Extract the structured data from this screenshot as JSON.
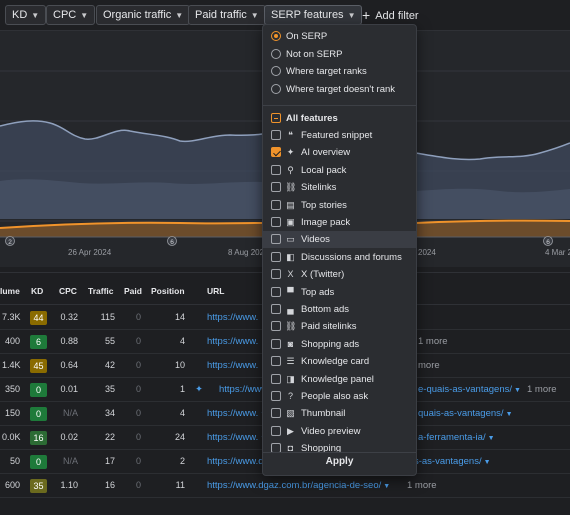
{
  "filters": [
    {
      "label": "KD"
    },
    {
      "label": "CPC"
    },
    {
      "label": "Organic traffic"
    },
    {
      "label": "Paid traffic"
    },
    {
      "label": "SERP features"
    }
  ],
  "add_filter": "Add filter",
  "chart": {
    "x_ticks": [
      "26 Apr 2024",
      "8 Aug 2024",
      "2024",
      "4 Mar 2"
    ],
    "markers": [
      "2",
      "6",
      "6"
    ],
    "colors": {
      "primary": "#8fa0bd",
      "orange": "#f0932b",
      "background": "#25272b"
    }
  },
  "serp_menu": {
    "position_options": [
      {
        "label": "On SERP",
        "selected": true
      },
      {
        "label": "Not on SERP",
        "selected": false
      },
      {
        "label": "Where target ranks",
        "selected": false
      },
      {
        "label": "Where target doesn't rank",
        "selected": false
      }
    ],
    "all_features_label": "All features",
    "features": [
      {
        "label": "Featured snippet",
        "icon": "featured-snippet-icon",
        "checked": false
      },
      {
        "label": "AI overview",
        "icon": "ai-overview-icon",
        "checked": true
      },
      {
        "label": "Local pack",
        "icon": "local-pack-icon",
        "checked": false
      },
      {
        "label": "Sitelinks",
        "icon": "sitelinks-icon",
        "checked": false
      },
      {
        "label": "Top stories",
        "icon": "top-stories-icon",
        "checked": false
      },
      {
        "label": "Image pack",
        "icon": "image-pack-icon",
        "checked": false
      },
      {
        "label": "Videos",
        "icon": "videos-icon",
        "checked": false
      },
      {
        "label": "Discussions and forums",
        "icon": "discussions-icon",
        "checked": false
      },
      {
        "label": "X (Twitter)",
        "icon": "x-twitter-icon",
        "checked": false
      },
      {
        "label": "Top ads",
        "icon": "top-ads-icon",
        "checked": false
      },
      {
        "label": "Bottom ads",
        "icon": "bottom-ads-icon",
        "checked": false
      },
      {
        "label": "Paid sitelinks",
        "icon": "paid-sitelinks-icon",
        "checked": false
      },
      {
        "label": "Shopping ads",
        "icon": "shopping-ads-icon",
        "checked": false
      },
      {
        "label": "Knowledge card",
        "icon": "knowledge-card-icon",
        "checked": false
      },
      {
        "label": "Knowledge panel",
        "icon": "knowledge-panel-icon",
        "checked": false
      },
      {
        "label": "People also ask",
        "icon": "people-also-ask-icon",
        "checked": false
      },
      {
        "label": "Thumbnail",
        "icon": "thumbnail-icon",
        "checked": false
      },
      {
        "label": "Video preview",
        "icon": "video-preview-icon",
        "checked": false
      },
      {
        "label": "Shopping",
        "icon": "shopping-icon",
        "checked": false
      }
    ],
    "apply_label": "Apply"
  },
  "table": {
    "headers": {
      "volume": "lume",
      "kd": "KD",
      "cpc": "CPC",
      "traffic": "Traffic",
      "paid": "Paid",
      "position": "Position",
      "url": "URL"
    },
    "rows": [
      {
        "volume": "7.3K",
        "kd": "44",
        "kd_color": "#8a6b00",
        "cpc": "0.32",
        "traffic": "115",
        "paid": "0",
        "position": "14",
        "url": "https://www.",
        "more": ""
      },
      {
        "volume": "400",
        "kd": "6",
        "kd_color": "#1e7a3a",
        "cpc": "0.88",
        "traffic": "55",
        "paid": "0",
        "position": "4",
        "url": "https://www.",
        "more": "1 more"
      },
      {
        "volume": "1.4K",
        "kd": "45",
        "kd_color": "#8a6b00",
        "cpc": "0.64",
        "traffic": "42",
        "paid": "0",
        "position": "10",
        "url": "https://www.",
        "more": "more"
      },
      {
        "volume": "350",
        "kd": "0",
        "kd_color": "#1e7a3a",
        "cpc": "0.01",
        "traffic": "35",
        "paid": "0",
        "position": "1",
        "url": "https://www.",
        "url_tail": "e-quais-as-vantagens/",
        "more": "1 more"
      },
      {
        "volume": "150",
        "kd": "0",
        "kd_color": "#1e7a3a",
        "cpc": "N/A",
        "traffic": "34",
        "paid": "0",
        "position": "4",
        "url": "https://www.",
        "url_tail": "quais-as-vantagens/",
        "more": ""
      },
      {
        "volume": "0.0K",
        "kd": "16",
        "kd_color": "#2c6b34",
        "cpc": "0.02",
        "traffic": "22",
        "paid": "0",
        "position": "24",
        "url": "https://www.",
        "url_tail": "a-ferramenta-ia/",
        "more": ""
      },
      {
        "volume": "50",
        "kd": "0",
        "kd_color": "#1e7a3a",
        "cpc": "N/A",
        "traffic": "17",
        "paid": "0",
        "position": "2",
        "url": "https://www.dgaz.com.br/blog/o-que-e-avif-e-quais-as-vantagens/",
        "more": ""
      },
      {
        "volume": "600",
        "kd": "35",
        "kd_color": "#6b6a1e",
        "cpc": "1.10",
        "traffic": "16",
        "paid": "0",
        "position": "11",
        "url": "https://www.dgaz.com.br/agencia-de-seo/",
        "more": "1 more"
      }
    ]
  }
}
